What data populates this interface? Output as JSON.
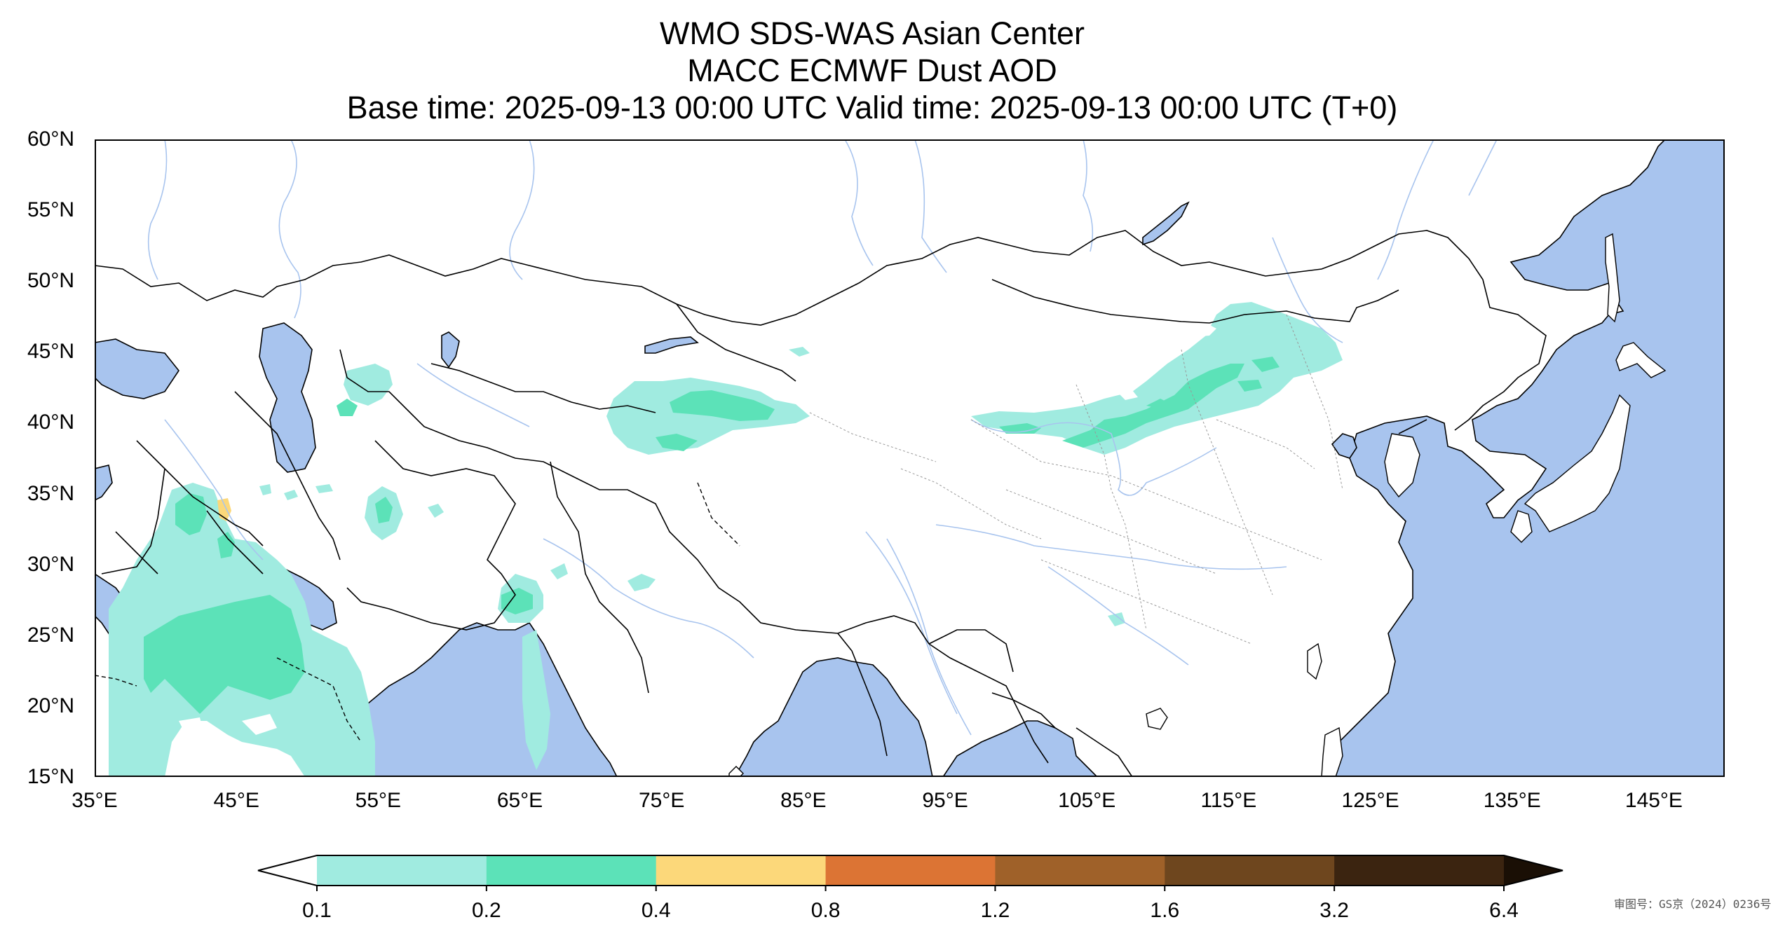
{
  "title": {
    "line1": "WMO SDS-WAS Asian Center",
    "line2": "MACC ECMWF Dust AOD",
    "line3": "Base time: 2025-09-13 00:00 UTC Valid time: 2025-09-13 00:00 UTC (T+0)"
  },
  "map": {
    "lat_ticks": [
      "60°N",
      "55°N",
      "50°N",
      "45°N",
      "40°N",
      "35°N",
      "30°N",
      "25°N",
      "20°N",
      "15°N"
    ],
    "lon_ticks": [
      "35°E",
      "45°E",
      "55°E",
      "65°E",
      "75°E",
      "85°E",
      "95°E",
      "105°E",
      "115°E",
      "125°E",
      "135°E",
      "145°E"
    ],
    "extent": {
      "lon": [
        35,
        150
      ],
      "lat": [
        15,
        60
      ]
    },
    "ocean_color": "#a8c4ee",
    "land_color": "#ffffff",
    "approval_number": "审图号：GS京（2024）0236号"
  },
  "colorbar": {
    "ticks": [
      "0.1",
      "0.2",
      "0.4",
      "0.8",
      "1.2",
      "1.6",
      "3.2",
      "6.4"
    ],
    "colors": [
      "#a0ebe0",
      "#5ce2b8",
      "#fcd87a",
      "#dc7434",
      "#9f6129",
      "#6e461e",
      "#3b2410"
    ],
    "under_color": "#ffffff",
    "over_color": "#1a0f05"
  }
}
